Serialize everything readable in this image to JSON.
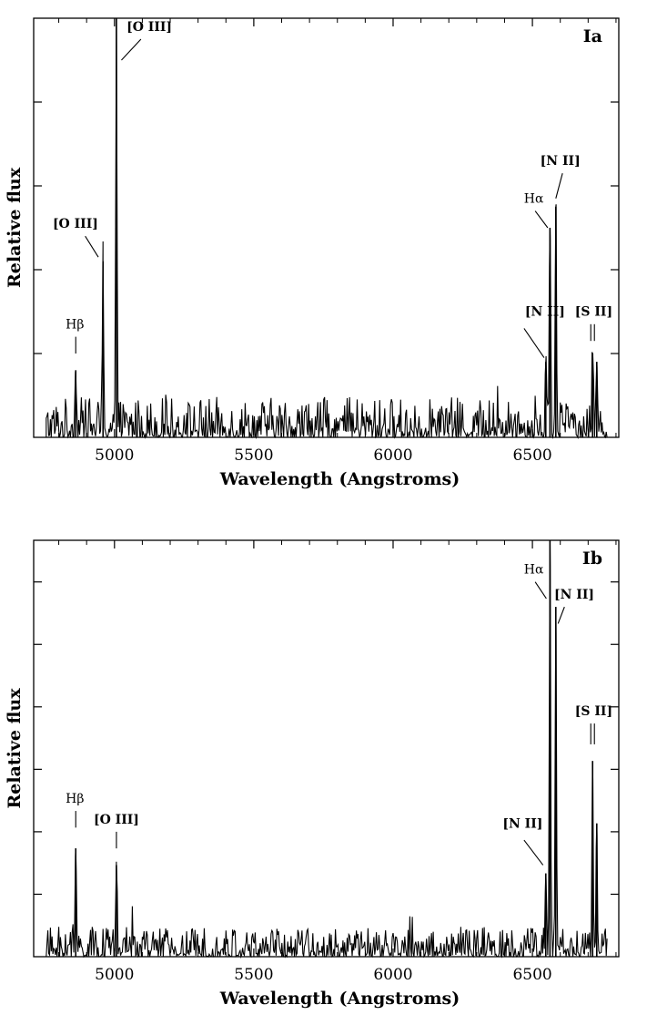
{
  "chart_data": [
    {
      "type": "line",
      "panel_label": "Ia",
      "xlabel": "Wavelength  (Angstroms)",
      "ylabel": "Relative flux",
      "xlim": [
        4710,
        6810
      ],
      "ylim": [
        0,
        1.0
      ],
      "x_ticks": [
        5000,
        5500,
        6000,
        6500
      ],
      "x_tick_labels": [
        "5000",
        "5500",
        "6000",
        "6500"
      ],
      "y_ticks": [
        0.2,
        0.4,
        0.6,
        0.8
      ],
      "y_tick_labels": [],
      "spectrum_range": [
        4755,
        6770
      ],
      "noise_level": 0.06,
      "lines": [
        {
          "name": "Hβ",
          "wavelength": 4861,
          "peak": 0.16
        },
        {
          "name": "[O III]",
          "wavelength": 4959,
          "peak": 0.42
        },
        {
          "name": "[O III]",
          "wavelength": 5007,
          "peak": 1.0
        },
        {
          "name": "[N II]",
          "wavelength": 6548,
          "peak": 0.18
        },
        {
          "name": "Hα",
          "wavelength": 6563,
          "peak": 0.5
        },
        {
          "name": "[N II]",
          "wavelength": 6584,
          "peak": 0.55
        },
        {
          "name": "[S II]",
          "wavelength": 6716,
          "peak": 0.2
        },
        {
          "name": "[S II]",
          "wavelength": 6731,
          "peak": 0.18
        }
      ],
      "annotations": [
        {
          "text": "[O III]",
          "bold": true,
          "label_x": 5125,
          "label_y": 0.97,
          "points": [
            [
              5095,
              0.95
            ],
            [
              5025,
              0.9
            ]
          ]
        },
        {
          "text": "[O III]",
          "bold": true,
          "label_x": 4860,
          "label_y": 0.5,
          "points": [
            [
              4895,
              0.48
            ],
            [
              4942,
              0.43
            ]
          ]
        },
        {
          "text": "Hβ",
          "bold": false,
          "label_x": 4858,
          "label_y": 0.26,
          "points": [
            [
              4861,
              0.24
            ],
            [
              4861,
              0.2
            ]
          ]
        },
        {
          "text": "[N II]",
          "bold": true,
          "label_x": 6545,
          "label_y": 0.29,
          "points": [
            [
              6470,
              0.26
            ],
            [
              6542,
              0.19
            ]
          ]
        },
        {
          "text": "Hα",
          "bold": false,
          "label_x": 6505,
          "label_y": 0.56,
          "points": [
            [
              6510,
              0.54
            ],
            [
              6555,
              0.5
            ]
          ]
        },
        {
          "text": "[N II]",
          "bold": true,
          "label_x": 6600,
          "label_y": 0.65,
          "points": [
            [
              6608,
              0.63
            ],
            [
              6584,
              0.57
            ]
          ]
        },
        {
          "text": "[S II]",
          "bold": true,
          "label_x": 6720,
          "label_y": 0.29,
          "points": [
            [
              6716,
              0.27
            ],
            [
              6716,
              0.23
            ]
          ],
          "double_tick": true
        }
      ]
    },
    {
      "type": "line",
      "panel_label": "Ib",
      "xlabel": "Wavelength  (Angstroms)",
      "ylabel": "Relative flux",
      "xlim": [
        4710,
        6810
      ],
      "ylim": [
        0,
        1.0
      ],
      "x_ticks": [
        5000,
        5500,
        6000,
        6500
      ],
      "x_tick_labels": [
        "5000",
        "5500",
        "6000",
        "6500"
      ],
      "y_ticks": [
        0.15,
        0.3,
        0.45,
        0.6,
        0.75,
        0.9
      ],
      "y_tick_labels": [],
      "spectrum_range": [
        4755,
        6770
      ],
      "noise_level": 0.045,
      "lines": [
        {
          "name": "Hβ",
          "wavelength": 4861,
          "peak": 0.26
        },
        {
          "name": "[O III]",
          "wavelength": 5007,
          "peak": 0.22
        },
        {
          "name": "[N II]",
          "wavelength": 6548,
          "peak": 0.2
        },
        {
          "name": "Hα",
          "wavelength": 6563,
          "peak": 1.0
        },
        {
          "name": "[N II]",
          "wavelength": 6584,
          "peak": 0.84
        },
        {
          "name": "[S II]",
          "wavelength": 6716,
          "peak": 0.47
        },
        {
          "name": "[S II]",
          "wavelength": 6731,
          "peak": 0.32
        }
      ],
      "annotations": [
        {
          "text": "Hβ",
          "bold": false,
          "label_x": 4858,
          "label_y": 0.37,
          "points": [
            [
              4861,
              0.35
            ],
            [
              4861,
              0.31
            ]
          ]
        },
        {
          "text": "[O III]",
          "bold": true,
          "label_x": 5007,
          "label_y": 0.32,
          "points": [
            [
              5007,
              0.3
            ],
            [
              5007,
              0.26
            ]
          ]
        },
        {
          "text": "[N II]",
          "bold": true,
          "label_x": 6465,
          "label_y": 0.31,
          "points": [
            [
              6470,
              0.28
            ],
            [
              6538,
              0.22
            ]
          ]
        },
        {
          "text": "Hα",
          "bold": false,
          "label_x": 6505,
          "label_y": 0.92,
          "points": [
            [
              6510,
              0.9
            ],
            [
              6550,
              0.86
            ]
          ]
        },
        {
          "text": "[N II]",
          "bold": true,
          "label_x": 6650,
          "label_y": 0.86,
          "points": [
            [
              6615,
              0.84
            ],
            [
              6592,
              0.8
            ]
          ]
        },
        {
          "text": "[S II]",
          "bold": true,
          "label_x": 6720,
          "label_y": 0.58,
          "points": [
            [
              6716,
              0.56
            ],
            [
              6716,
              0.51
            ]
          ],
          "double_tick": true
        }
      ]
    }
  ]
}
